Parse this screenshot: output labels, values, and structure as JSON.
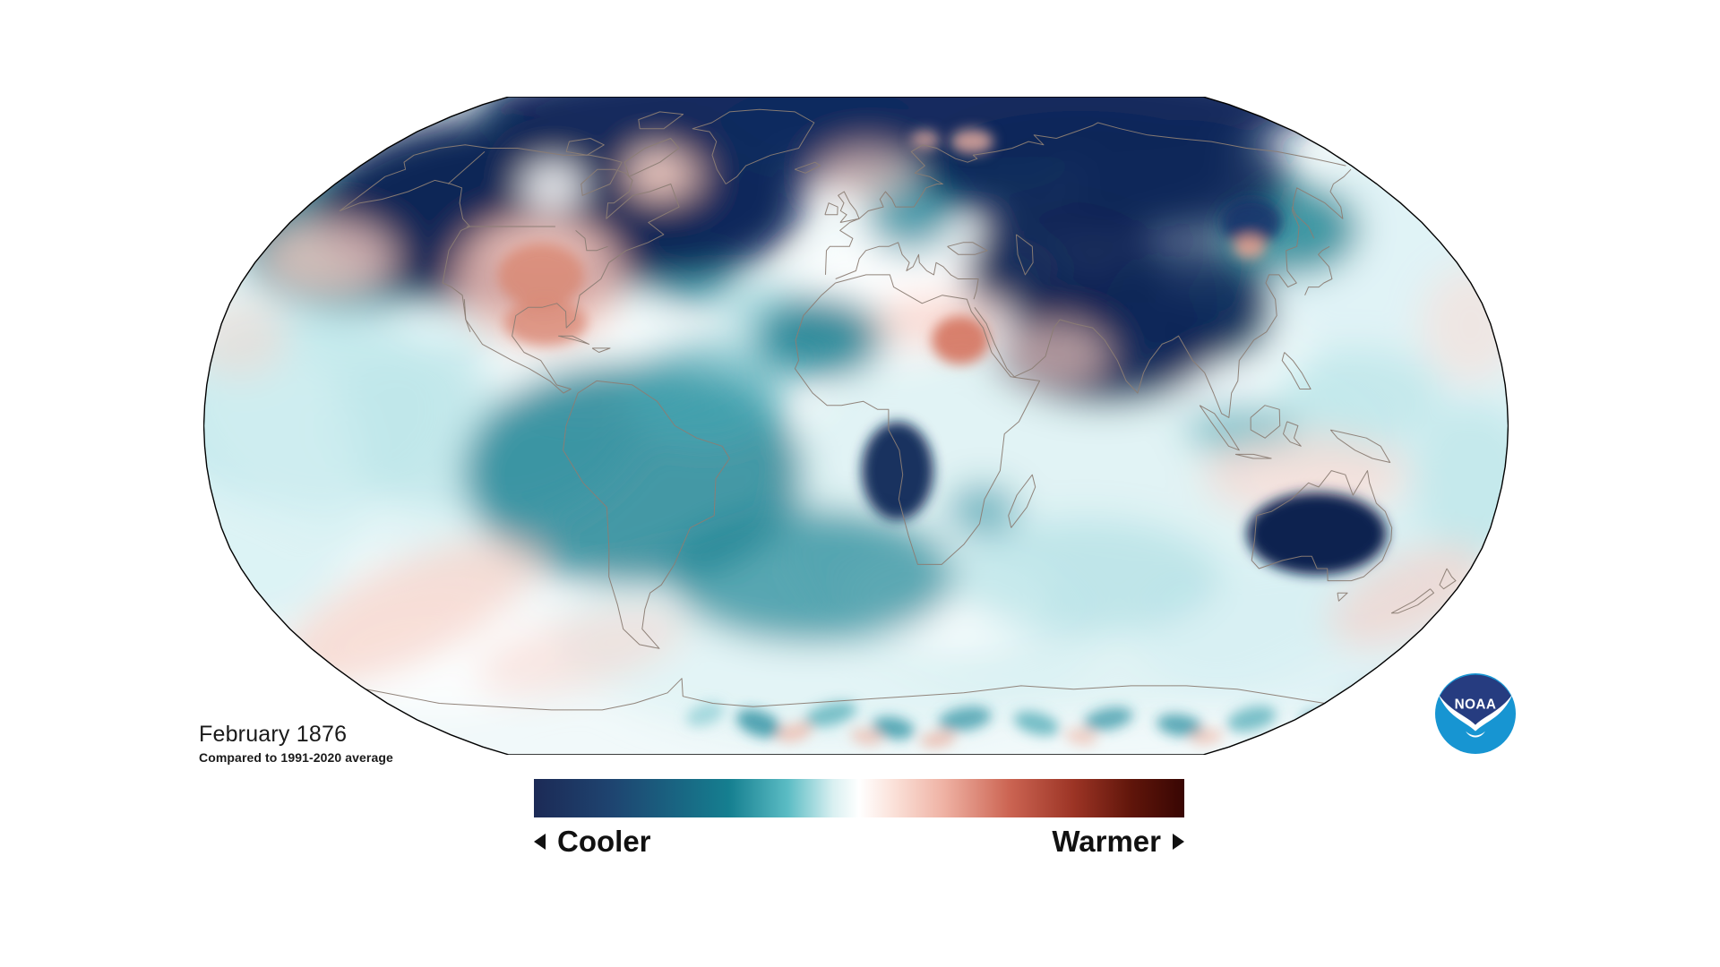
{
  "header": {
    "title": "February 1876",
    "subtitle": "Compared to 1991-2020 average"
  },
  "legend": {
    "cooler_label": "Cooler",
    "warmer_label": "Warmer",
    "gradient": [
      "#1c2a56",
      "#1e4470",
      "#157f90",
      "#5bbcc4",
      "#d9f0f1",
      "#ffffff",
      "#fbe3db",
      "#efb2a4",
      "#cc6553",
      "#9c3425",
      "#5f150a",
      "#380603"
    ]
  },
  "logo": {
    "text": "NOAA",
    "navy": "#263c80",
    "blue": "#1795d2"
  },
  "map": {
    "projection": "Robinson",
    "colors": {
      "cold_extreme": "#0f2557",
      "cold": "#177e8f",
      "cold_light": "#a8dde3",
      "neutral": "#ffffff",
      "warm_light": "#f2bdb1",
      "warm": "#cc6553",
      "warm_extreme": "#380603",
      "base": "#f1f9fa",
      "coastline": "#8b7d74",
      "outline": "#000000"
    }
  }
}
